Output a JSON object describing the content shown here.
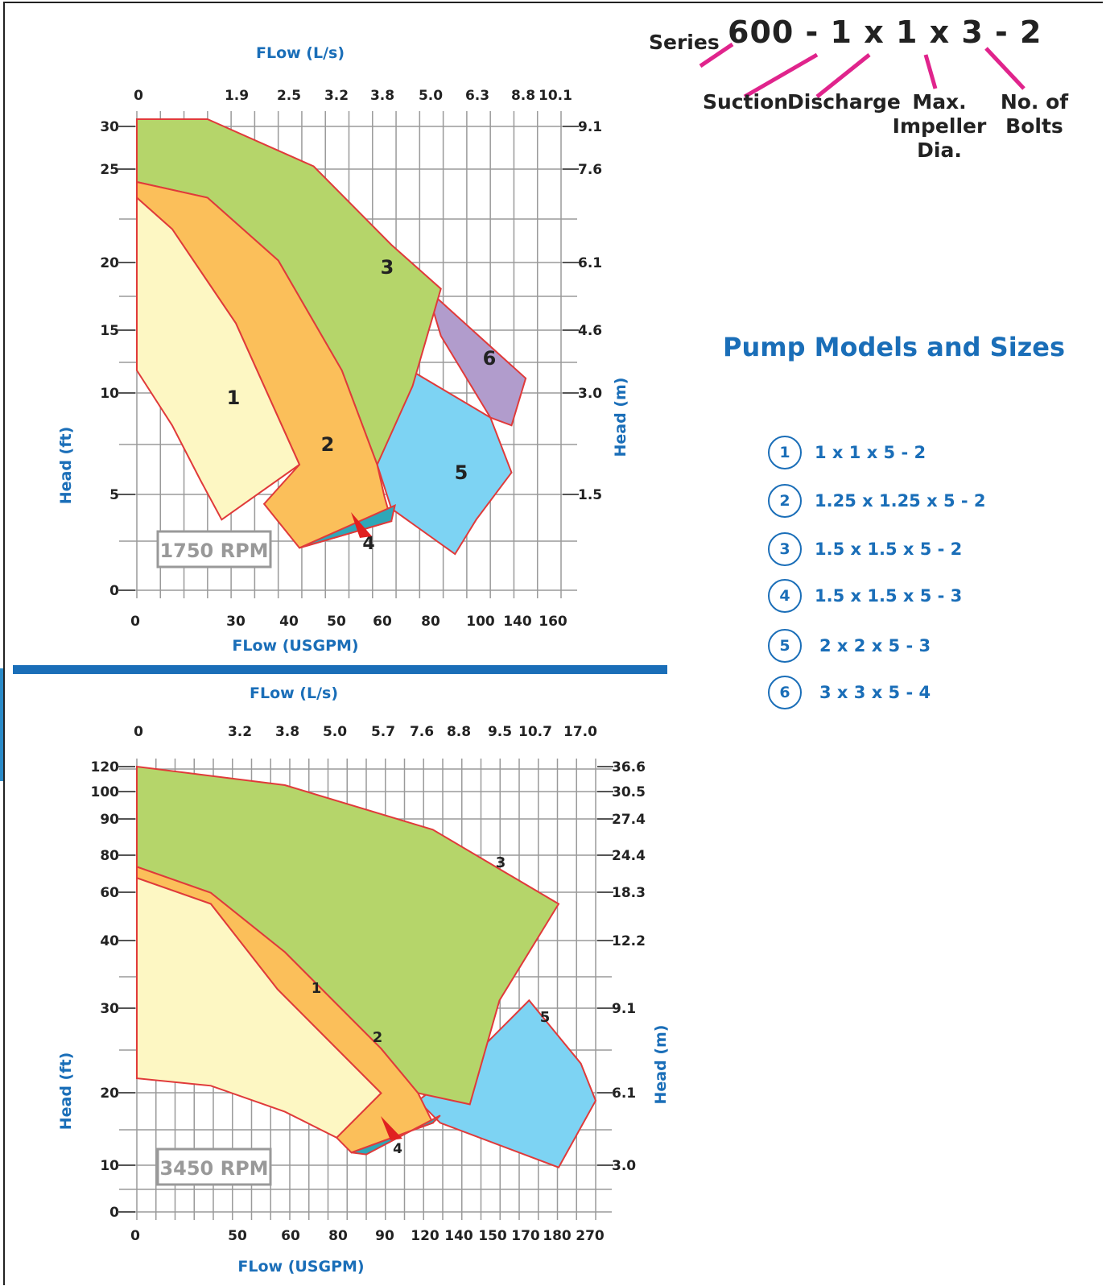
{
  "series": {
    "prefix": "Series",
    "code": "600 - 1 x 1 x 3 - 2",
    "labels": {
      "suction": "Suction",
      "discharge": "Discharge",
      "impeller": "Max.\nImpeller\nDia.",
      "bolts": "No. of\nBolts"
    },
    "accent": "#e0248c"
  },
  "models": {
    "title": "Pump Models and Sizes",
    "items": [
      {
        "num": "1",
        "label": "1 x 1 x 5 - 2"
      },
      {
        "num": "2",
        "label": "1.25 x 1.25 x 5 - 2"
      },
      {
        "num": "3",
        "label": "1.5 x 1.5 x 5 - 2"
      },
      {
        "num": "4",
        "label": "1.5 x 1.5 x 5 - 3"
      },
      {
        "num": "5",
        "label": "2 x 2 x 5 - 3"
      },
      {
        "num": "6",
        "label": "3 x 3 x 5 - 4"
      }
    ]
  },
  "colors": {
    "region1": "#fdf7c3",
    "region2": "#fbbf5a",
    "region3": "#b5d56a",
    "region4": "#2fa7b8",
    "region5": "#7dd3f3",
    "region6": "#b19ccc",
    "outline": "#e03a3a",
    "axis_title": "#1a6eb8",
    "grid": "#9a9a9a"
  },
  "chart_data": [
    {
      "type": "area",
      "rpm_label": "1750 RPM",
      "top_axis_title": "FLow (L/s)",
      "bottom_axis_title": "FLow (USGPM)",
      "left_axis_title": "Head (ft)",
      "right_axis_title": "Head (m)",
      "x_ticks_usgpm": [
        "0",
        "30",
        "40",
        "50",
        "60",
        "80",
        "100",
        "140",
        "160"
      ],
      "x_ticks_ls": [
        "0",
        "1.9",
        "2.5",
        "3.2",
        "3.8",
        "5.0",
        "6.3",
        "8.8",
        "10.1"
      ],
      "y_ticks_ft": [
        "0",
        "5",
        "10",
        "15",
        "20",
        "25",
        "30"
      ],
      "y_ticks_m": [
        "1.5",
        "3.0",
        "4.6",
        "6.1",
        "7.6",
        "9.1"
      ],
      "series": [
        {
          "name": "1",
          "region": [
            [
              0,
              25
            ],
            [
              0,
              14
            ],
            [
              5,
              10.5
            ],
            [
              9,
              7
            ],
            [
              12,
              4.5
            ],
            [
              23,
              8
            ],
            [
              14,
              17
            ],
            [
              5,
              23
            ]
          ]
        },
        {
          "name": "2",
          "region": [
            [
              0,
              26
            ],
            [
              0,
              25
            ],
            [
              5,
              23
            ],
            [
              14,
              17
            ],
            [
              23,
              8
            ],
            [
              18,
              5.5
            ],
            [
              23,
              2.7
            ],
            [
              36,
              4.4
            ],
            [
              35,
              6
            ],
            [
              34,
              8
            ],
            [
              29,
              14
            ],
            [
              20,
              21
            ],
            [
              10,
              25
            ]
          ]
        },
        {
          "name": "3",
          "region": [
            [
              0,
              26
            ],
            [
              0,
              30
            ],
            [
              10,
              30
            ],
            [
              25,
              27
            ],
            [
              36,
              22
            ],
            [
              43,
              19.2
            ],
            [
              39,
              13
            ],
            [
              34,
              8
            ],
            [
              29,
              14
            ],
            [
              20,
              21
            ],
            [
              10,
              25
            ]
          ]
        },
        {
          "name": "4",
          "region": [
            [
              23,
              2.7
            ],
            [
              36,
              4.4
            ],
            [
              36.5,
              5.4
            ]
          ]
        },
        {
          "name": "5",
          "region": [
            [
              38,
              14.2
            ],
            [
              50,
              11
            ],
            [
              53,
              7.5
            ],
            [
              48,
              4.5
            ],
            [
              45,
              2.3
            ],
            [
              36,
              5.2
            ],
            [
              34,
              8
            ]
          ]
        },
        {
          "name": "6",
          "region": [
            [
              41,
              19.2
            ],
            [
              55,
              13.5
            ],
            [
              53,
              10.5
            ],
            [
              50,
              11
            ],
            [
              43,
              16.2
            ]
          ]
        }
      ]
    },
    {
      "type": "area",
      "rpm_label": "3450 RPM",
      "top_axis_title": "FLow (L/s)",
      "bottom_axis_title": "FLow (USGPM)",
      "left_axis_title": "Head (ft)",
      "right_axis_title": "Head (m)",
      "x_ticks_usgpm": [
        "0",
        "50",
        "60",
        "80",
        "90",
        "120",
        "140",
        "150",
        "170",
        "180",
        "270"
      ],
      "x_ticks_ls": [
        "0",
        "3.2",
        "3.8",
        "5.0",
        "5.7",
        "7.6",
        "8.8",
        "9.5",
        "10.7",
        "17.0"
      ],
      "y_ticks_ft": [
        "0",
        "10",
        "20",
        "30",
        "40",
        "60",
        "80",
        "90",
        "100",
        "120"
      ],
      "y_ticks_m": [
        "3.0",
        "6.1",
        "9.1",
        "12.2",
        "18.3",
        "24.4",
        "27.4",
        "30.5",
        "36.6"
      ],
      "series": [
        {
          "name": "1",
          "region": [
            [
              0,
              90
            ],
            [
              0,
              36
            ],
            [
              10,
              34
            ],
            [
              20,
              27
            ],
            [
              27,
              20
            ],
            [
              33,
              32
            ],
            [
              19,
              60
            ],
            [
              10,
              83
            ]
          ]
        },
        {
          "name": "2",
          "region": [
            [
              0,
              93
            ],
            [
              0,
              90
            ],
            [
              10,
              83
            ],
            [
              19,
              60
            ],
            [
              33,
              32
            ],
            [
              27,
              20
            ],
            [
              29,
              16
            ],
            [
              40,
              24
            ],
            [
              38,
              32
            ],
            [
              33,
              44
            ],
            [
              20,
              70
            ],
            [
              10,
              86
            ]
          ]
        },
        {
          "name": "3",
          "region": [
            [
              0,
              93
            ],
            [
              0,
              120
            ],
            [
              20,
              115
            ],
            [
              40,
              103
            ],
            [
              57,
              83
            ],
            [
              49,
              57
            ],
            [
              45,
              29
            ],
            [
              38,
              32
            ],
            [
              33,
              44
            ],
            [
              20,
              70
            ],
            [
              10,
              86
            ]
          ]
        },
        {
          "name": "4",
          "region": [
            [
              29,
              16
            ],
            [
              40,
              24
            ],
            [
              41,
              26
            ],
            [
              31,
              15.5
            ]
          ]
        },
        {
          "name": "5",
          "region": [
            [
              44,
              39
            ],
            [
              53,
              57
            ],
            [
              60,
              40
            ],
            [
              62,
              30
            ],
            [
              57,
              12
            ],
            [
              41,
              24
            ],
            [
              38,
              30
            ]
          ]
        }
      ]
    }
  ]
}
